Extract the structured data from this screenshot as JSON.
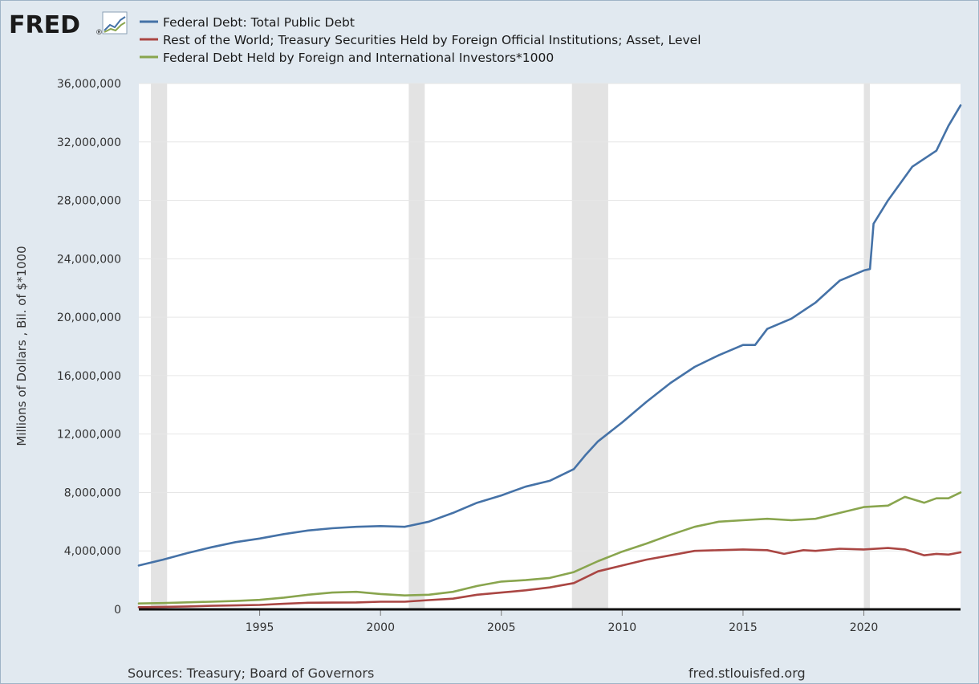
{
  "header": {
    "logo_text": "FRED",
    "logo_mark": "®"
  },
  "footer": {
    "sources": "Sources: Treasury; Board of Governors",
    "site": "fred.stlouisfed.org"
  },
  "colors": {
    "background": "#e1e9f0",
    "plot_background": "#ffffff",
    "recession": "#e3e3e3",
    "debt": "#4572a7",
    "foreign_official": "#aa4643",
    "foreign_investors": "#89a54e"
  },
  "chart_data": {
    "type": "line",
    "title": "",
    "xlabel": "",
    "ylabel": "Millions of Dollars , Bil. of $*1000",
    "xlim": [
      1990.0,
      2024.0
    ],
    "ylim": [
      0,
      36000000
    ],
    "grid": true,
    "legend_position": "top-left",
    "y_ticks": [
      0,
      4000000,
      8000000,
      12000000,
      16000000,
      20000000,
      24000000,
      28000000,
      32000000,
      36000000
    ],
    "y_tick_labels": [
      "0",
      "4,000,000",
      "8,000,000",
      "12,000,000",
      "16,000,000",
      "20,000,000",
      "24,000,000",
      "28,000,000",
      "32,000,000",
      "36,000,000"
    ],
    "x_ticks": [
      1995,
      2000,
      2005,
      2010,
      2015,
      2020
    ],
    "x_tick_labels": [
      "1995",
      "2000",
      "2005",
      "2010",
      "2015",
      "2020"
    ],
    "recessions": [
      [
        1990.5,
        1991.17
      ],
      [
        2001.17,
        2001.83
      ],
      [
        2007.92,
        2009.42
      ],
      [
        2020.0,
        2020.25
      ]
    ],
    "series": [
      {
        "name": "Federal Debt: Total Public Debt",
        "color": "#4572a7",
        "points": [
          [
            1990.0,
            3000000
          ],
          [
            1991.0,
            3400000
          ],
          [
            1992.0,
            3850000
          ],
          [
            1993.0,
            4250000
          ],
          [
            1994.0,
            4600000
          ],
          [
            1995.0,
            4850000
          ],
          [
            1996.0,
            5150000
          ],
          [
            1997.0,
            5400000
          ],
          [
            1998.0,
            5550000
          ],
          [
            1999.0,
            5650000
          ],
          [
            2000.0,
            5700000
          ],
          [
            2001.0,
            5650000
          ],
          [
            2002.0,
            6000000
          ],
          [
            2003.0,
            6600000
          ],
          [
            2004.0,
            7300000
          ],
          [
            2005.0,
            7800000
          ],
          [
            2006.0,
            8400000
          ],
          [
            2007.0,
            8800000
          ],
          [
            2008.0,
            9600000
          ],
          [
            2008.5,
            10600000
          ],
          [
            2009.0,
            11500000
          ],
          [
            2010.0,
            12800000
          ],
          [
            2011.0,
            14200000
          ],
          [
            2012.0,
            15500000
          ],
          [
            2013.0,
            16600000
          ],
          [
            2014.0,
            17400000
          ],
          [
            2015.0,
            18100000
          ],
          [
            2015.5,
            18100000
          ],
          [
            2016.0,
            19200000
          ],
          [
            2017.0,
            19900000
          ],
          [
            2018.0,
            21000000
          ],
          [
            2019.0,
            22500000
          ],
          [
            2020.0,
            23200000
          ],
          [
            2020.25,
            23300000
          ],
          [
            2020.4,
            26400000
          ],
          [
            2021.0,
            28000000
          ],
          [
            2022.0,
            30300000
          ],
          [
            2023.0,
            31400000
          ],
          [
            2023.5,
            33100000
          ],
          [
            2024.0,
            34500000
          ]
        ]
      },
      {
        "name": "Rest of the World; Treasury Securities Held by Foreign Official Institutions; Asset, Level",
        "color": "#aa4643",
        "points": [
          [
            1990.0,
            150000
          ],
          [
            1991.0,
            170000
          ],
          [
            1992.0,
            200000
          ],
          [
            1993.0,
            240000
          ],
          [
            1994.0,
            270000
          ],
          [
            1995.0,
            300000
          ],
          [
            1996.0,
            380000
          ],
          [
            1997.0,
            450000
          ],
          [
            1998.0,
            460000
          ],
          [
            1999.0,
            470000
          ],
          [
            2000.0,
            520000
          ],
          [
            2001.0,
            520000
          ],
          [
            2002.0,
            630000
          ],
          [
            2003.0,
            730000
          ],
          [
            2004.0,
            1000000
          ],
          [
            2005.0,
            1150000
          ],
          [
            2006.0,
            1300000
          ],
          [
            2007.0,
            1500000
          ],
          [
            2008.0,
            1800000
          ],
          [
            2009.0,
            2600000
          ],
          [
            2010.0,
            3000000
          ],
          [
            2011.0,
            3400000
          ],
          [
            2012.0,
            3700000
          ],
          [
            2013.0,
            4000000
          ],
          [
            2014.0,
            4050000
          ],
          [
            2015.0,
            4100000
          ],
          [
            2016.0,
            4050000
          ],
          [
            2016.7,
            3800000
          ],
          [
            2017.5,
            4050000
          ],
          [
            2018.0,
            4000000
          ],
          [
            2019.0,
            4150000
          ],
          [
            2020.0,
            4100000
          ],
          [
            2021.0,
            4200000
          ],
          [
            2021.7,
            4100000
          ],
          [
            2022.5,
            3700000
          ],
          [
            2023.0,
            3800000
          ],
          [
            2023.5,
            3750000
          ],
          [
            2024.0,
            3900000
          ]
        ]
      },
      {
        "name": "Federal Debt Held by Foreign and International Investors*1000",
        "color": "#89a54e",
        "points": [
          [
            1990.0,
            400000
          ],
          [
            1991.0,
            430000
          ],
          [
            1992.0,
            480000
          ],
          [
            1993.0,
            520000
          ],
          [
            1994.0,
            570000
          ],
          [
            1995.0,
            650000
          ],
          [
            1996.0,
            800000
          ],
          [
            1997.0,
            1000000
          ],
          [
            1998.0,
            1150000
          ],
          [
            1999.0,
            1200000
          ],
          [
            2000.0,
            1050000
          ],
          [
            2001.0,
            950000
          ],
          [
            2002.0,
            1000000
          ],
          [
            2003.0,
            1200000
          ],
          [
            2004.0,
            1600000
          ],
          [
            2005.0,
            1900000
          ],
          [
            2006.0,
            2000000
          ],
          [
            2007.0,
            2150000
          ],
          [
            2008.0,
            2550000
          ],
          [
            2009.0,
            3300000
          ],
          [
            2010.0,
            3950000
          ],
          [
            2011.0,
            4500000
          ],
          [
            2012.0,
            5100000
          ],
          [
            2013.0,
            5650000
          ],
          [
            2014.0,
            6000000
          ],
          [
            2015.0,
            6100000
          ],
          [
            2016.0,
            6200000
          ],
          [
            2017.0,
            6100000
          ],
          [
            2018.0,
            6200000
          ],
          [
            2019.0,
            6600000
          ],
          [
            2020.0,
            7000000
          ],
          [
            2021.0,
            7100000
          ],
          [
            2021.7,
            7700000
          ],
          [
            2022.5,
            7300000
          ],
          [
            2023.0,
            7600000
          ],
          [
            2023.5,
            7600000
          ],
          [
            2024.0,
            8000000
          ]
        ]
      }
    ]
  }
}
